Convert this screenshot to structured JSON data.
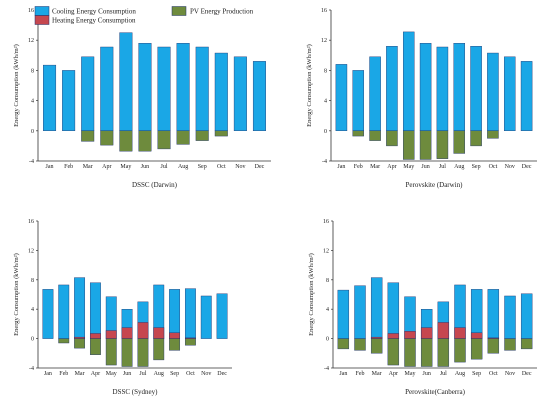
{
  "legend": {
    "cooling": "Cooling Energy Consumption",
    "heating": "Heating Energy Consumption",
    "pv": "PV Energy Production"
  },
  "colors": {
    "cooling": "#1aa7e6",
    "heating": "#c6474f",
    "pv": "#6e8b3d",
    "stroke": "#1f2f6b"
  },
  "chart_data": [
    {
      "type": "bar",
      "title": "DSSC (Darwin)",
      "ylabel": "Energy Consumption (kWh/m²)",
      "ylim": [
        -4,
        16
      ],
      "yticks": [
        -4,
        0,
        4,
        8,
        12,
        16
      ],
      "categories": [
        "Jan",
        "Feb",
        "Mar",
        "Apr",
        "May",
        "Jun",
        "Jul",
        "Aug",
        "Sep",
        "Oct",
        "Nov",
        "Dec"
      ],
      "series": [
        {
          "name": "Cooling Energy Consumption",
          "key": "cooling",
          "values": [
            8.7,
            8.0,
            9.8,
            11.1,
            13.0,
            11.6,
            11.1,
            11.6,
            11.1,
            10.3,
            9.8,
            9.2
          ]
        },
        {
          "name": "Heating Energy Consumption",
          "key": "heating",
          "values": [
            0,
            0,
            0,
            0,
            0,
            0,
            0,
            0,
            0,
            0,
            0,
            0
          ]
        },
        {
          "name": "PV Energy Production",
          "key": "pv",
          "values": [
            0,
            0,
            -1.4,
            -1.9,
            -2.7,
            -2.7,
            -2.4,
            -1.8,
            -1.3,
            -0.7,
            0,
            0
          ]
        }
      ]
    },
    {
      "type": "bar",
      "title": "Perovskite (Darwin)",
      "ylabel": "Energy Consumption (kWh/m²)",
      "ylim": [
        -4,
        16
      ],
      "yticks": [
        -4,
        0,
        4,
        8,
        12,
        16
      ],
      "categories": [
        "Jan",
        "Feb",
        "Mar",
        "Apr",
        "May",
        "Jun",
        "Jul",
        "Aug",
        "Sep",
        "Oct",
        "Nov",
        "Dec"
      ],
      "series": [
        {
          "name": "Cooling Energy Consumption",
          "key": "cooling",
          "values": [
            8.8,
            8.0,
            9.8,
            11.2,
            13.1,
            11.6,
            11.1,
            11.6,
            11.2,
            10.3,
            9.8,
            9.2
          ]
        },
        {
          "name": "Heating Energy Consumption",
          "key": "heating",
          "values": [
            0,
            0,
            0,
            0,
            0,
            0,
            0,
            0,
            0,
            0,
            0,
            0
          ]
        },
        {
          "name": "PV Energy Production",
          "key": "pv",
          "values": [
            0,
            -0.7,
            -1.3,
            -2.0,
            -3.8,
            -3.8,
            -3.7,
            -3.0,
            -2.0,
            -1.0,
            0,
            0
          ]
        }
      ]
    },
    {
      "type": "bar",
      "title": "DSSC (Sydney)",
      "ylabel": "Energy Consumption (kWh/m²)",
      "ylim": [
        -4,
        16
      ],
      "yticks": [
        -4,
        0,
        4,
        8,
        12,
        16
      ],
      "categories": [
        "Jan",
        "Feb",
        "Mar",
        "Apr",
        "May",
        "Jun",
        "Jul",
        "Aug",
        "Sep",
        "Oct",
        "Nov",
        "Dec"
      ],
      "series": [
        {
          "name": "Cooling Energy Consumption",
          "key": "cooling",
          "values": [
            6.7,
            7.3,
            8.3,
            7.6,
            5.7,
            4.0,
            5.0,
            7.3,
            6.7,
            6.8,
            5.8,
            6.1
          ]
        },
        {
          "name": "Heating Energy Consumption",
          "key": "heating",
          "values": [
            0,
            0,
            0.2,
            0.7,
            1.1,
            1.5,
            2.2,
            1.5,
            0.8,
            0.1,
            0,
            0
          ]
        },
        {
          "name": "PV Energy Production",
          "key": "pv",
          "values": [
            0,
            -0.6,
            -1.3,
            -2.2,
            -3.6,
            -3.8,
            -3.8,
            -2.9,
            -1.6,
            -0.9,
            0,
            0
          ]
        }
      ]
    },
    {
      "type": "bar",
      "title": "Perovskite(Canberra)",
      "ylabel": "Energy Consumption (kWh/m²)",
      "ylim": [
        -4,
        16
      ],
      "yticks": [
        -4,
        0,
        4,
        8,
        12,
        16
      ],
      "categories": [
        "Jan",
        "Feb",
        "Mar",
        "Apr",
        "May",
        "Jun",
        "Jul",
        "Aug",
        "Sep",
        "Oct",
        "Nov",
        "Dec"
      ],
      "series": [
        {
          "name": "Cooling Energy Consumption",
          "key": "cooling",
          "values": [
            6.6,
            7.2,
            8.3,
            7.6,
            5.7,
            4.0,
            5.0,
            7.3,
            6.7,
            6.7,
            5.8,
            6.1
          ]
        },
        {
          "name": "Heating Energy Consumption",
          "key": "heating",
          "values": [
            0,
            0,
            0.2,
            0.7,
            1.0,
            1.5,
            2.2,
            1.5,
            0.8,
            0.1,
            0,
            0
          ]
        },
        {
          "name": "PV Energy Production",
          "key": "pv",
          "values": [
            -1.4,
            -1.6,
            -2.0,
            -3.6,
            -3.8,
            -3.8,
            -3.8,
            -3.2,
            -2.8,
            -2.0,
            -1.6,
            -1.4
          ]
        }
      ]
    }
  ]
}
